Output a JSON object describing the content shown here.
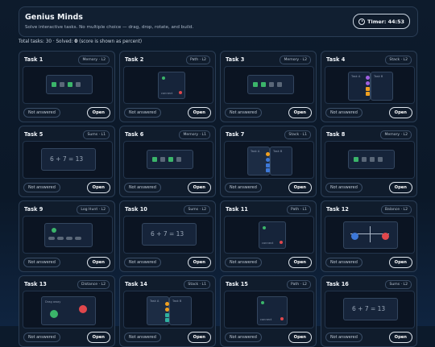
{
  "header": {
    "title": "Genius Minds",
    "subtitle": "Solve interactive tasks. No multiple choice — drag, drop, rotate, and build.",
    "timer_label": "Timer: 44:53"
  },
  "summary": {
    "total_label": "Total tasks:",
    "total": "30",
    "solved_label": "· Solved:",
    "solved": "0",
    "note": "(score is shown as percent)"
  },
  "common": {
    "not_answered": "Not answered",
    "open": "Open",
    "connect": "connect",
    "stack_a": "Task A",
    "stack_b": "Task B",
    "drag_away": "Drag away",
    "sum_eq": "6 + 7 = 13"
  },
  "tasks": [
    {
      "title": "Task 1",
      "tag": "Memory · L2"
    },
    {
      "title": "Task 2",
      "tag": "Path · L2"
    },
    {
      "title": "Task 3",
      "tag": "Memory · L2"
    },
    {
      "title": "Task 4",
      "tag": "Stack · L2"
    },
    {
      "title": "Task 5",
      "tag": "Sums · L1"
    },
    {
      "title": "Task 6",
      "tag": "Memory · L1"
    },
    {
      "title": "Task 7",
      "tag": "Stack · L1"
    },
    {
      "title": "Task 8",
      "tag": "Memory · L2"
    },
    {
      "title": "Task 9",
      "tag": "Log Hunt · L2"
    },
    {
      "title": "Task 10",
      "tag": "Sums · L2"
    },
    {
      "title": "Task 11",
      "tag": "Path · L1"
    },
    {
      "title": "Task 12",
      "tag": "Balance · L2"
    },
    {
      "title": "Task 13",
      "tag": "Distance · L2"
    },
    {
      "title": "Task 14",
      "tag": "Stack · L1"
    },
    {
      "title": "Task 15",
      "tag": "Path · L2"
    },
    {
      "title": "Task 16",
      "tag": "Sums · L2"
    }
  ],
  "colors": {
    "green": "#3bb56a",
    "grey": "#5a6778",
    "red": "#e0474c",
    "blue": "#3d78d8",
    "orange": "#f0a020",
    "purple": "#a060e0",
    "teal": "#2fb0a0"
  }
}
